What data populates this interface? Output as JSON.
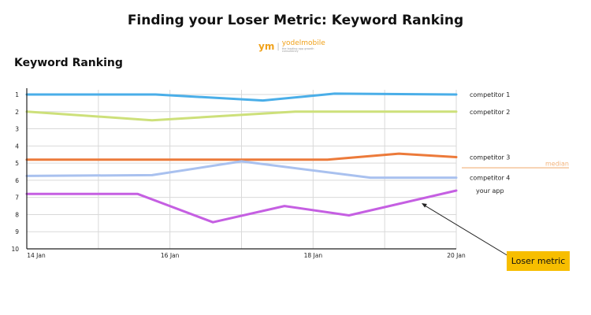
{
  "page": {
    "title": "Finding your Loser Metric: Keyword Ranking",
    "subtitle": "Keyword Ranking",
    "logo": {
      "mark": "ym",
      "name": "yodelmobile",
      "tagline": "the leading app growth consultancy"
    }
  },
  "chart_data": {
    "type": "line",
    "x_ticks": [
      "14 Jan",
      "16 Jan",
      "18 Jan",
      "20 Jan"
    ],
    "x_range": [
      0,
      6
    ],
    "y_ticks": [
      "1",
      "2",
      "3",
      "4",
      "5",
      "6",
      "7",
      "8",
      "9",
      "10"
    ],
    "ylim": [
      1,
      10
    ],
    "y_reversed": true,
    "grid": true,
    "series": [
      {
        "name": "competitor 1",
        "color": "#4aaee8",
        "width": 3,
        "points": [
          [
            0,
            1
          ],
          [
            1.8,
            1
          ],
          [
            3.3,
            1.35
          ],
          [
            4.3,
            0.95
          ],
          [
            6,
            1
          ]
        ]
      },
      {
        "name": "competitor 2",
        "color": "#cde07a",
        "width": 3,
        "points": [
          [
            0,
            2
          ],
          [
            1.75,
            2.5
          ],
          [
            3.75,
            2
          ],
          [
            6,
            2
          ]
        ]
      },
      {
        "name": "competitor 3",
        "color": "#ec7a3a",
        "width": 3,
        "points": [
          [
            0,
            4.8
          ],
          [
            4.2,
            4.8
          ],
          [
            5.2,
            4.45
          ],
          [
            6,
            4.65
          ]
        ]
      },
      {
        "name": "competitor 4",
        "color": "#a9c1ef",
        "width": 3,
        "points": [
          [
            0,
            5.75
          ],
          [
            1.75,
            5.7
          ],
          [
            3.0,
            4.9
          ],
          [
            4.8,
            5.85
          ],
          [
            6,
            5.85
          ]
        ]
      },
      {
        "name": "your app",
        "color": "#c55fe2",
        "width": 3,
        "points": [
          [
            0,
            6.8
          ],
          [
            1.55,
            6.8
          ],
          [
            2.6,
            8.45
          ],
          [
            3.6,
            7.5
          ],
          [
            4.5,
            8.05
          ],
          [
            6,
            6.6
          ]
        ]
      }
    ],
    "median_label": "median",
    "median_color": "#f2b27a",
    "callout": {
      "label": "Loser metric",
      "color": "#f7be00",
      "points_to": "your app"
    }
  }
}
